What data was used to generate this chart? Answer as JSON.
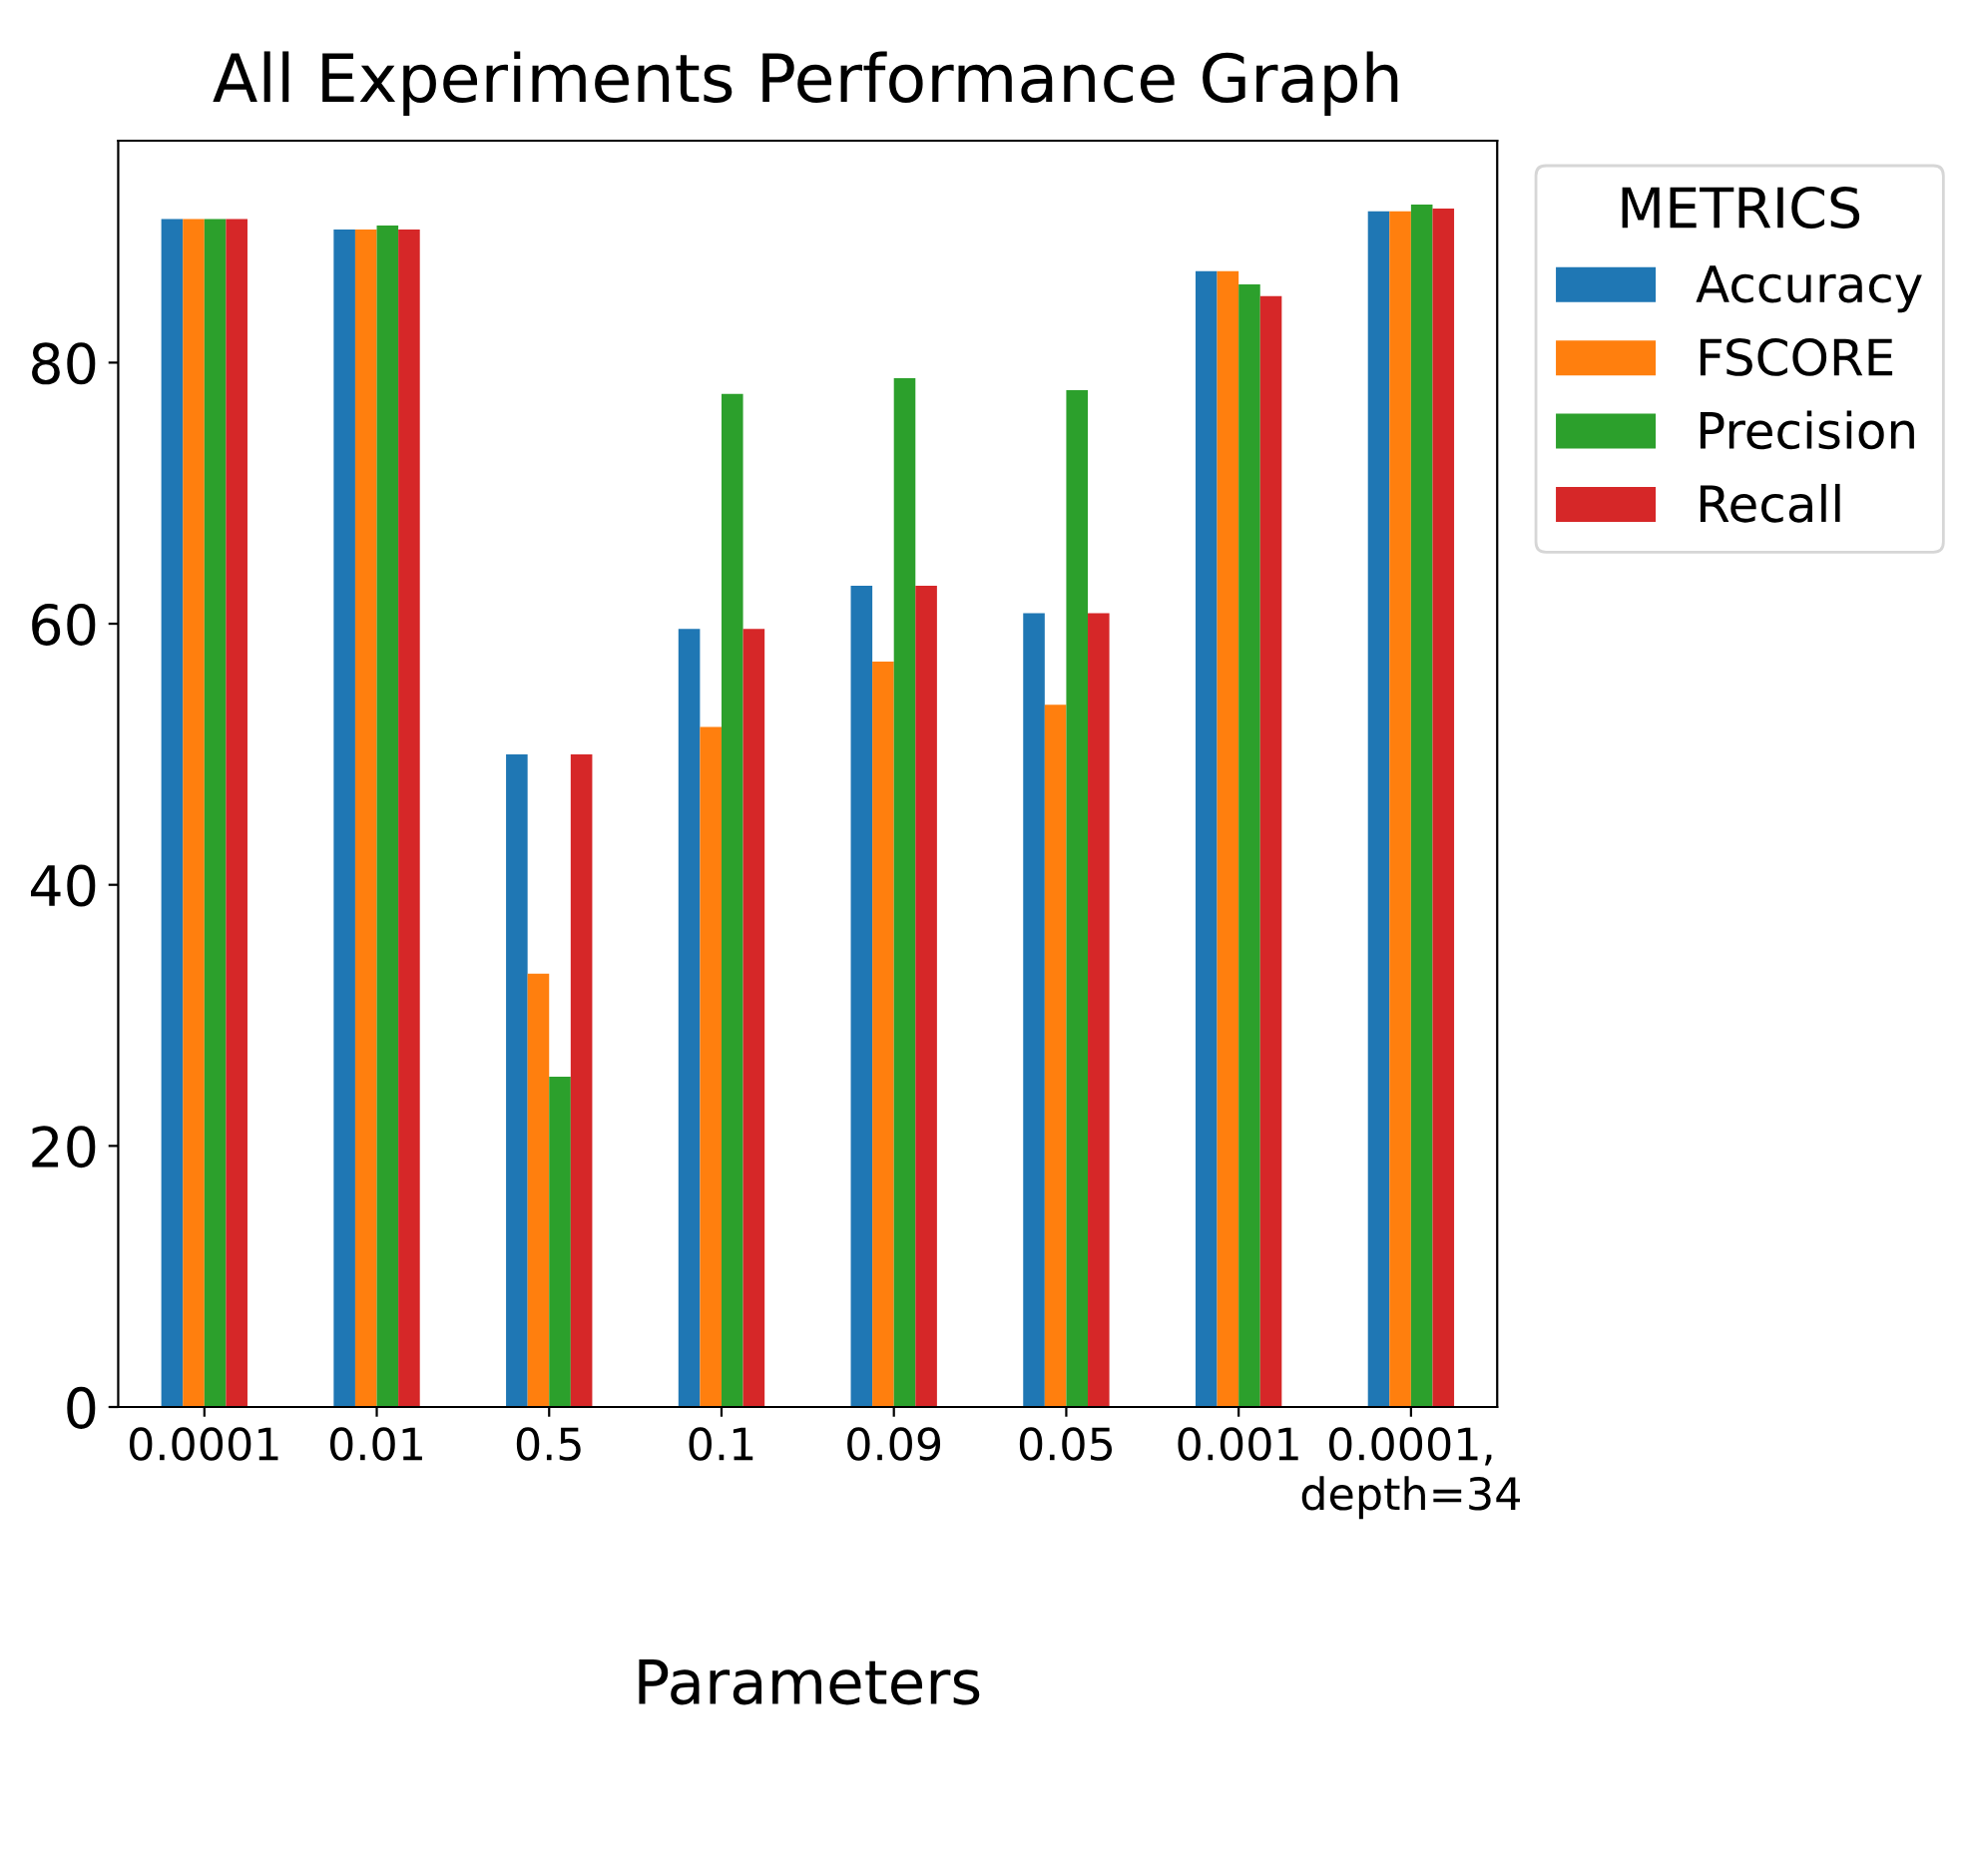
{
  "chart_data": {
    "type": "bar",
    "title": "All Experiments Performance Graph",
    "xlabel": "Parameters",
    "legend_title": "METRICS",
    "categories": [
      "0.0001",
      "0.01",
      "0.5",
      "0.1",
      "0.09",
      "0.05",
      "0.001",
      "0.0001,\ndepth=34"
    ],
    "series": [
      {
        "name": "Accuracy",
        "color": "#1f77b4",
        "values": [
          91.0,
          90.2,
          50.0,
          59.6,
          62.9,
          60.8,
          87.0,
          91.6
        ]
      },
      {
        "name": "FSCORE",
        "color": "#ff7f0e",
        "values": [
          91.0,
          90.2,
          33.2,
          52.1,
          57.1,
          53.8,
          87.0,
          91.6
        ]
      },
      {
        "name": "Precision",
        "color": "#2ca02c",
        "values": [
          91.0,
          90.5,
          25.3,
          77.6,
          78.8,
          77.9,
          86.0,
          92.1
        ]
      },
      {
        "name": "Recall",
        "color": "#d62728",
        "values": [
          91.0,
          90.2,
          50.0,
          59.6,
          62.9,
          60.8,
          85.1,
          91.8
        ]
      }
    ],
    "ylim": [
      0,
      97
    ],
    "yticks": [
      0,
      20,
      40,
      60,
      80
    ],
    "grid": false,
    "legend": "top right"
  }
}
